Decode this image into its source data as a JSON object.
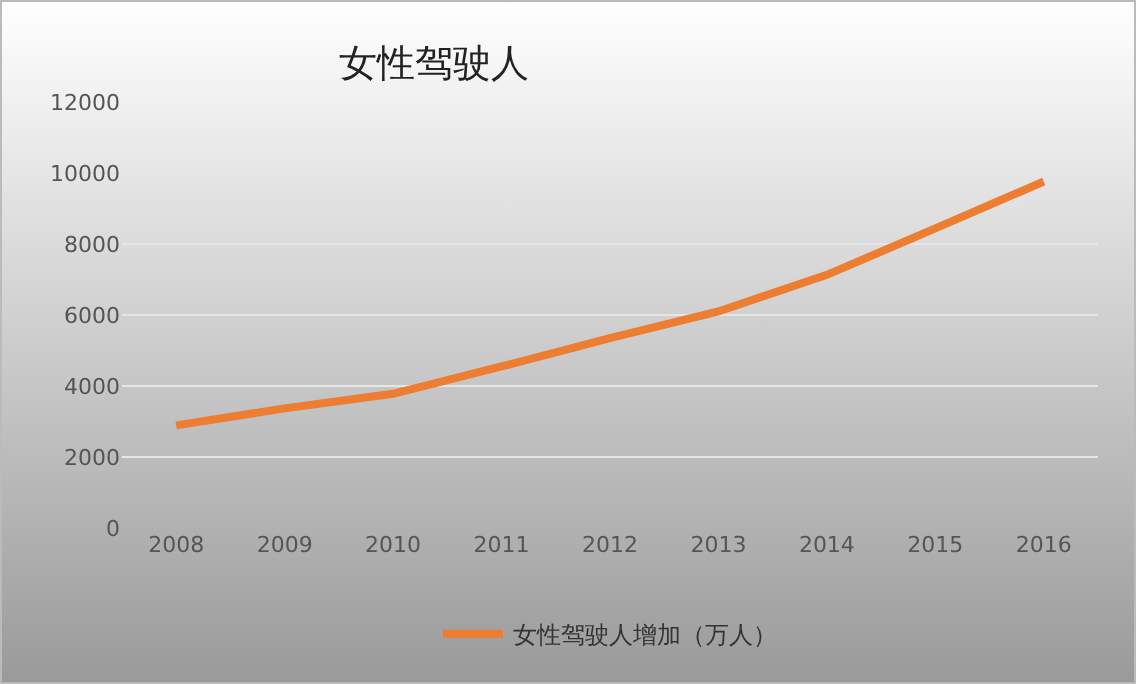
{
  "chart_data": {
    "type": "line",
    "title": "女性驾驶人",
    "categories": [
      "2008",
      "2009",
      "2010",
      "2011",
      "2012",
      "2013",
      "2014",
      "2015",
      "2016"
    ],
    "series": [
      {
        "name": "女性驾驶人增加（万人）",
        "color": "#ed7d31",
        "values": [
          2890,
          3370,
          3780,
          4550,
          5350,
          6100,
          7130,
          8440,
          9760
        ]
      }
    ],
    "ylim": [
      0,
      12000
    ],
    "yticks": [
      0,
      2000,
      4000,
      6000,
      8000,
      10000,
      12000
    ],
    "grid": "y",
    "legend": "bottom",
    "marker": "none",
    "line_style": "solid"
  }
}
